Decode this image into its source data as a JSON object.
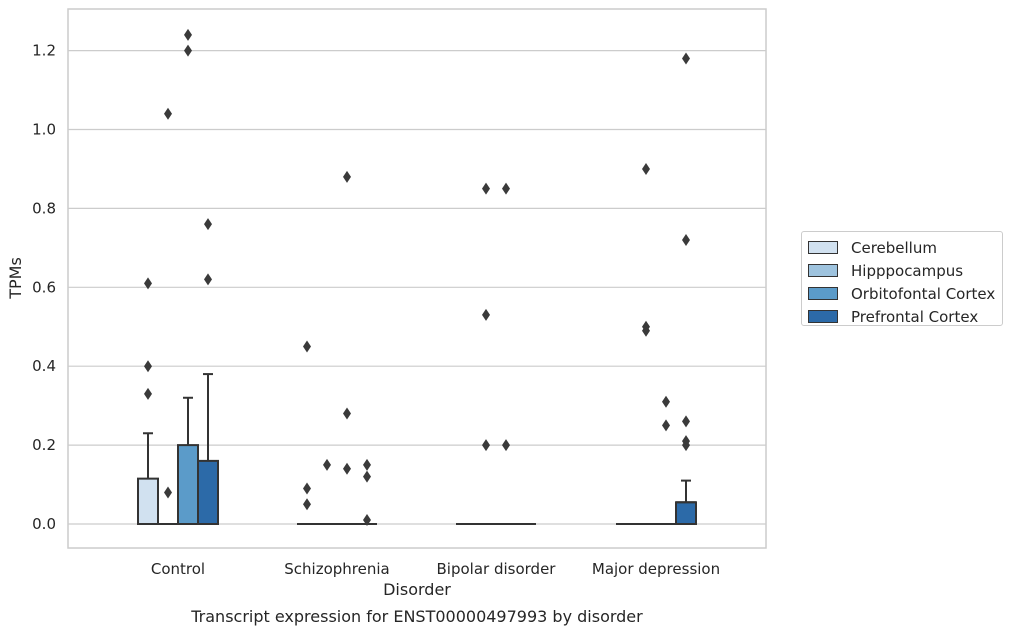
{
  "chart_data": {
    "type": "box",
    "xlabel": "Disorder",
    "ylabel": "TPMs",
    "caption": "Transcript expression for ENST00000497993 by disorder",
    "ylim": [
      -0.06,
      1.31
    ],
    "yticks": [
      0.0,
      0.2,
      0.4,
      0.6,
      0.8,
      1.0,
      1.2
    ],
    "ytick_labels": [
      "0.0",
      "0.2",
      "0.4",
      "0.6",
      "0.8",
      "1.0",
      "1.2"
    ],
    "grid": "horizontal",
    "legend_placement": "right",
    "categories": [
      "Control",
      "Schizophrenia",
      "Bipolar disorder",
      "Major depression"
    ],
    "series": [
      {
        "name": "Cerebellum",
        "color": "#d1e1f0",
        "boxes": [
          {
            "category": "Control",
            "q1": 0.0,
            "median": 0.0,
            "q3": 0.115,
            "whisker_low": 0.0,
            "whisker_high": 0.23,
            "outliers": [
              0.33,
              0.4,
              0.61
            ]
          },
          {
            "category": "Schizophrenia",
            "q1": 0.0,
            "median": 0.0,
            "q3": 0.0,
            "whisker_low": 0.0,
            "whisker_high": 0.0,
            "outliers": [
              0.05,
              0.09,
              0.45
            ]
          },
          {
            "category": "Bipolar disorder",
            "q1": 0.0,
            "median": 0.0,
            "q3": 0.0,
            "whisker_low": 0.0,
            "whisker_high": 0.0,
            "outliers": []
          },
          {
            "category": "Major depression",
            "q1": 0.0,
            "median": 0.0,
            "q3": 0.0,
            "whisker_low": 0.0,
            "whisker_high": 0.0,
            "outliers": []
          }
        ]
      },
      {
        "name": "Hipppocampus",
        "color": "#9ec3de",
        "boxes": [
          {
            "category": "Control",
            "q1": 0.0,
            "median": 0.0,
            "q3": 0.0,
            "whisker_low": 0.0,
            "whisker_high": 0.0,
            "outliers": [
              0.08,
              1.04
            ]
          },
          {
            "category": "Schizophrenia",
            "q1": 0.0,
            "median": 0.0,
            "q3": 0.0,
            "whisker_low": 0.0,
            "whisker_high": 0.0,
            "outliers": [
              0.15
            ]
          },
          {
            "category": "Bipolar disorder",
            "q1": 0.0,
            "median": 0.0,
            "q3": 0.0,
            "whisker_low": 0.0,
            "whisker_high": 0.0,
            "outliers": [
              0.2,
              0.53,
              0.85
            ]
          },
          {
            "category": "Major depression",
            "q1": 0.0,
            "median": 0.0,
            "q3": 0.0,
            "whisker_low": 0.0,
            "whisker_high": 0.0,
            "outliers": [
              0.49,
              0.5,
              0.9
            ]
          }
        ]
      },
      {
        "name": "Orbitofontal Cortex",
        "color": "#5b9bc9",
        "boxes": [
          {
            "category": "Control",
            "q1": 0.0,
            "median": 0.0,
            "q3": 0.2,
            "whisker_low": 0.0,
            "whisker_high": 0.32,
            "outliers": [
              1.2,
              1.24
            ]
          },
          {
            "category": "Schizophrenia",
            "q1": 0.0,
            "median": 0.0,
            "q3": 0.0,
            "whisker_low": 0.0,
            "whisker_high": 0.0,
            "outliers": [
              0.14,
              0.28,
              0.88
            ]
          },
          {
            "category": "Bipolar disorder",
            "q1": 0.0,
            "median": 0.0,
            "q3": 0.0,
            "whisker_low": 0.0,
            "whisker_high": 0.0,
            "outliers": [
              0.2,
              0.85
            ]
          },
          {
            "category": "Major depression",
            "q1": 0.0,
            "median": 0.0,
            "q3": 0.0,
            "whisker_low": 0.0,
            "whisker_high": 0.0,
            "outliers": [
              0.25,
              0.31
            ]
          }
        ]
      },
      {
        "name": "Prefrontal Cortex",
        "color": "#2c6aa8",
        "boxes": [
          {
            "category": "Control",
            "q1": 0.0,
            "median": 0.0,
            "q3": 0.16,
            "whisker_low": 0.0,
            "whisker_high": 0.38,
            "outliers": [
              0.62,
              0.76
            ]
          },
          {
            "category": "Schizophrenia",
            "q1": 0.0,
            "median": 0.0,
            "q3": 0.0,
            "whisker_low": 0.0,
            "whisker_high": 0.0,
            "outliers": [
              0.01,
              0.12,
              0.15
            ]
          },
          {
            "category": "Bipolar disorder",
            "q1": 0.0,
            "median": 0.0,
            "q3": 0.0,
            "whisker_low": 0.0,
            "whisker_high": 0.0,
            "outliers": []
          },
          {
            "category": "Major depression",
            "q1": 0.0,
            "median": 0.055,
            "q3": 0.055,
            "whisker_low": 0.0,
            "whisker_high": 0.11,
            "outliers": [
              0.21,
              0.72,
              1.18
            ]
          }
        ]
      },
      {
        "name": "",
        "color": "#2c6aa8",
        "boxes": [
          {
            "category": "Major depression",
            "q1": 0.0,
            "median": 0.0,
            "q3": 0.0,
            "whisker_low": 0.0,
            "whisker_high": 0.0,
            "outliers": [
              0.2,
              0.26
            ]
          }
        ]
      }
    ]
  }
}
